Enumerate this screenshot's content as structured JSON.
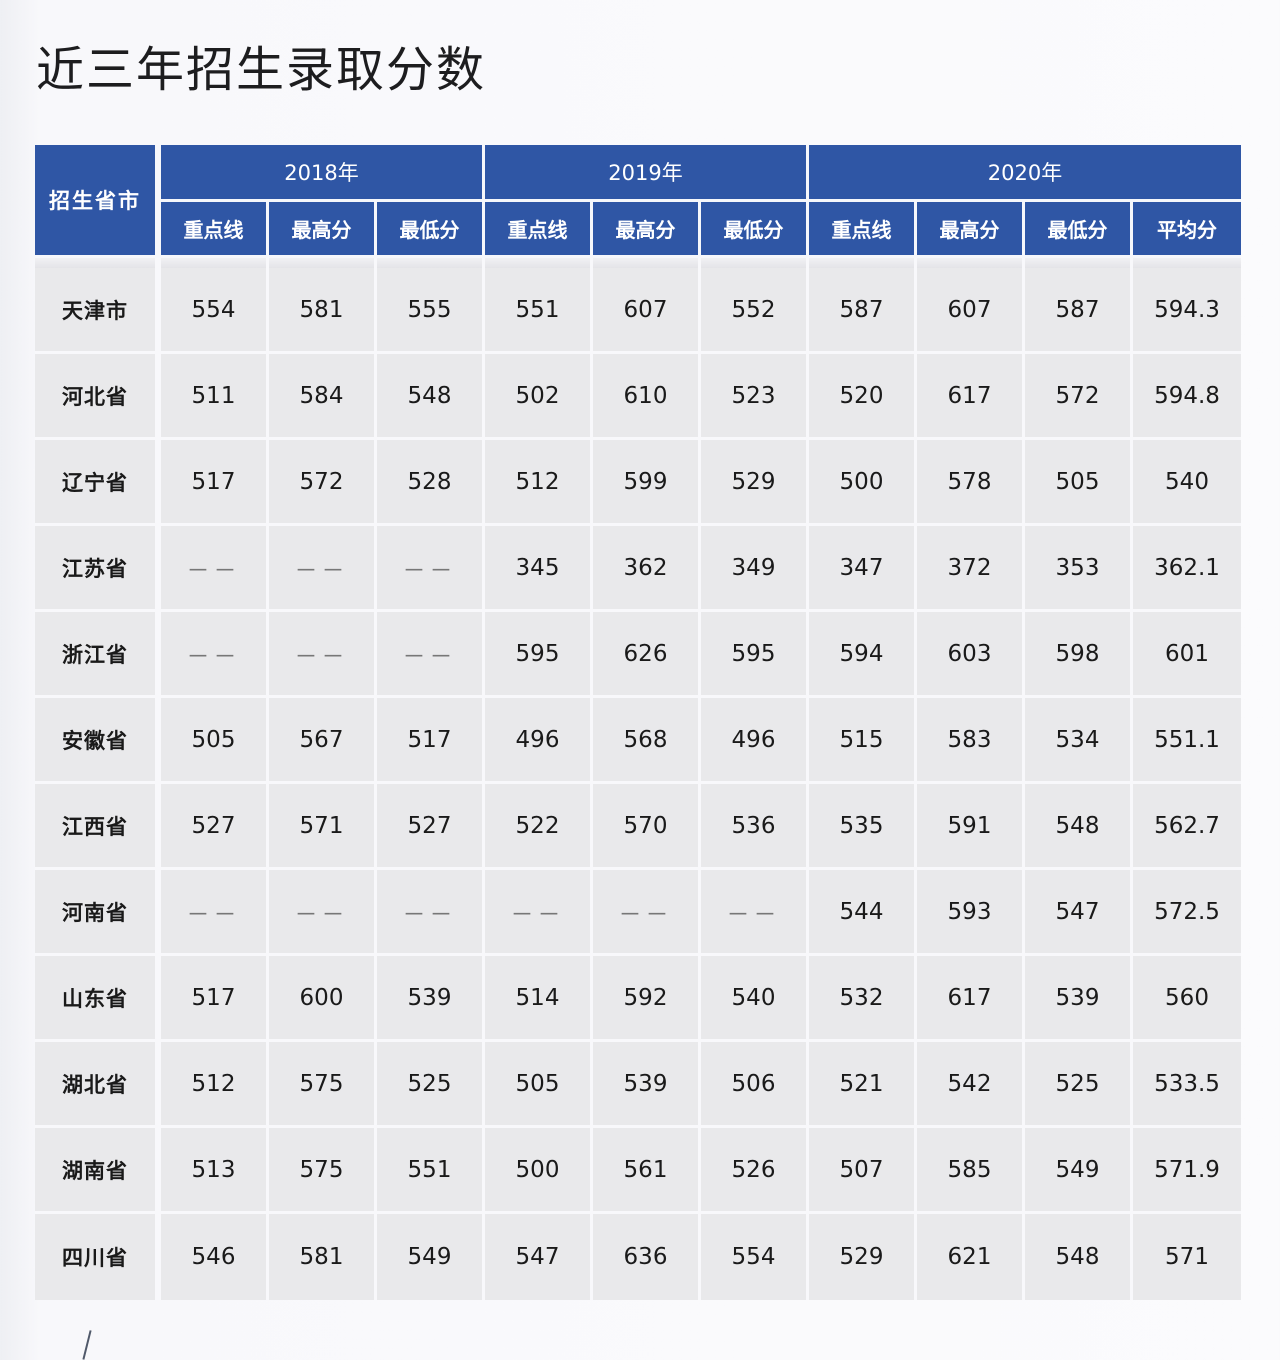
{
  "page": {
    "title": "近三年招生录取分数"
  },
  "colors": {
    "header_bg": "#2f56a5",
    "header_text": "#ffffff",
    "cell_bg": "#e9e9eb",
    "cell_text": "#1a1a1a",
    "missing_text": "#777777"
  },
  "table": {
    "province_header": "招生省市",
    "years": [
      {
        "label": "2018年",
        "columns": [
          "重点线",
          "最高分",
          "最低分"
        ]
      },
      {
        "label": "2019年",
        "columns": [
          "重点线",
          "最高分",
          "最低分"
        ]
      },
      {
        "label": "2020年",
        "columns": [
          "重点线",
          "最高分",
          "最低分",
          "平均分"
        ]
      }
    ],
    "rows": [
      {
        "province": "天津市",
        "cells": [
          "554",
          "581",
          "555",
          "551",
          "607",
          "552",
          "587",
          "607",
          "587",
          "594.3"
        ]
      },
      {
        "province": "河北省",
        "cells": [
          "511",
          "584",
          "548",
          "502",
          "610",
          "523",
          "520",
          "617",
          "572",
          "594.8"
        ]
      },
      {
        "province": "辽宁省",
        "cells": [
          "517",
          "572",
          "528",
          "512",
          "599",
          "529",
          "500",
          "578",
          "505",
          "540"
        ]
      },
      {
        "province": "江苏省",
        "cells": [
          "－－",
          "－－",
          "－－",
          "345",
          "362",
          "349",
          "347",
          "372",
          "353",
          "362.1"
        ]
      },
      {
        "province": "浙江省",
        "cells": [
          "－－",
          "－－",
          "－－",
          "595",
          "626",
          "595",
          "594",
          "603",
          "598",
          "601"
        ]
      },
      {
        "province": "安徽省",
        "cells": [
          "505",
          "567",
          "517",
          "496",
          "568",
          "496",
          "515",
          "583",
          "534",
          "551.1"
        ]
      },
      {
        "province": "江西省",
        "cells": [
          "527",
          "571",
          "527",
          "522",
          "570",
          "536",
          "535",
          "591",
          "548",
          "562.7"
        ]
      },
      {
        "province": "河南省",
        "cells": [
          "－－",
          "－－",
          "－－",
          "－－",
          "－－",
          "－－",
          "544",
          "593",
          "547",
          "572.5"
        ]
      },
      {
        "province": "山东省",
        "cells": [
          "517",
          "600",
          "539",
          "514",
          "592",
          "540",
          "532",
          "617",
          "539",
          "560"
        ]
      },
      {
        "province": "湖北省",
        "cells": [
          "512",
          "575",
          "525",
          "505",
          "539",
          "506",
          "521",
          "542",
          "525",
          "533.5"
        ]
      },
      {
        "province": "湖南省",
        "cells": [
          "513",
          "575",
          "551",
          "500",
          "561",
          "526",
          "507",
          "585",
          "549",
          "571.9"
        ]
      },
      {
        "province": "四川省",
        "cells": [
          "546",
          "581",
          "549",
          "547",
          "636",
          "554",
          "529",
          "621",
          "548",
          "571"
        ]
      }
    ]
  }
}
